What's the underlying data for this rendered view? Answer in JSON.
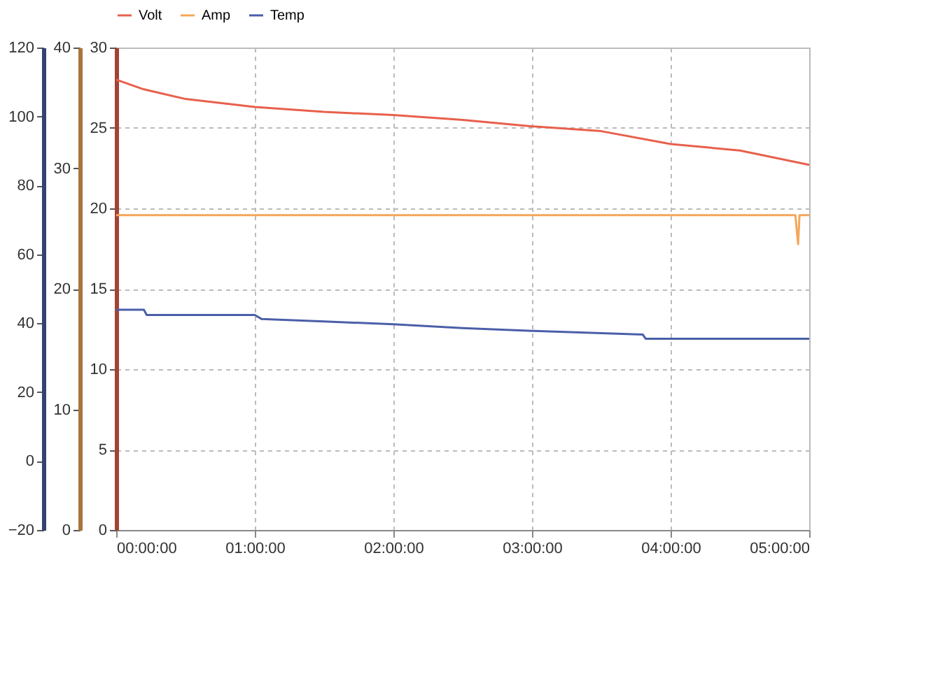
{
  "chart_data": {
    "type": "line",
    "grid": true,
    "legend": "top",
    "line_style": "solid",
    "marker": "none",
    "xlim": [
      0,
      5
    ],
    "xticks": [
      {
        "value": 0,
        "label": "00:00:00"
      },
      {
        "value": 1,
        "label": "01:00:00"
      },
      {
        "value": 2,
        "label": "02:00:00"
      },
      {
        "value": 3,
        "label": "03:00:00"
      },
      {
        "value": 4,
        "label": "04:00:00"
      },
      {
        "value": 5,
        "label": "05:00:00"
      }
    ],
    "ylim": [
      0,
      30
    ],
    "yticks": [
      0,
      5,
      10,
      15,
      20,
      25,
      30
    ],
    "y2lim": [
      0,
      40
    ],
    "y2ticks": [
      0,
      10,
      20,
      30,
      40
    ],
    "y3lim": [
      -20,
      120
    ],
    "y3ticks": [
      -20,
      0,
      20,
      40,
      60,
      80,
      100,
      120
    ],
    "series": [
      {
        "name": "Volt",
        "color": "#e8604c",
        "x": [
          0,
          0.2,
          0.5,
          1,
          1.5,
          2,
          2.5,
          3,
          3.5,
          4,
          4.5,
          5
        ],
        "values": [
          28.0,
          27.4,
          26.8,
          26.3,
          26.0,
          25.8,
          25.5,
          25.1,
          24.8,
          24.0,
          23.6,
          22.7
        ]
      },
      {
        "name": "Amp",
        "color": "#f5a65b",
        "axis": "y2",
        "x": [
          0,
          1,
          2,
          3,
          4,
          4.9,
          4.92,
          4.93,
          5
        ],
        "values": [
          26.1,
          26.1,
          26.1,
          26.1,
          26.1,
          26.1,
          23.7,
          26.1,
          26.1
        ]
      },
      {
        "name": "Temp",
        "color": "#4a5fa8",
        "axis": "y3",
        "x": [
          0,
          0.2,
          0.22,
          0.6,
          1.0,
          1.05,
          1.5,
          2.0,
          2.5,
          3.0,
          3.8,
          3.82,
          5
        ],
        "values": [
          43.9,
          43.9,
          42.4,
          42.4,
          42.4,
          41.2,
          40.5,
          39.7,
          38.6,
          37.8,
          36.7,
          35.5,
          35.5
        ]
      }
    ]
  }
}
